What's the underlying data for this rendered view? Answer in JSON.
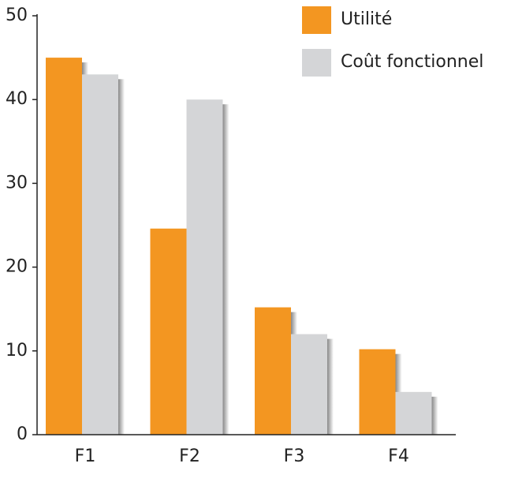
{
  "chart_data": {
    "type": "bar",
    "categories": [
      "F1",
      "F2",
      "F3",
      "F4"
    ],
    "series": [
      {
        "name": "Utilité",
        "color": "#f39621",
        "values": [
          45,
          24.6,
          15.2,
          10.2
        ]
      },
      {
        "name": "Coût fonctionnel",
        "color": "#d4d5d7",
        "values": [
          43,
          40,
          12,
          5.1
        ]
      }
    ],
    "ylim": [
      0,
      50
    ],
    "yticks": [
      0,
      10,
      20,
      30,
      40,
      50
    ],
    "legend": "top-right"
  }
}
